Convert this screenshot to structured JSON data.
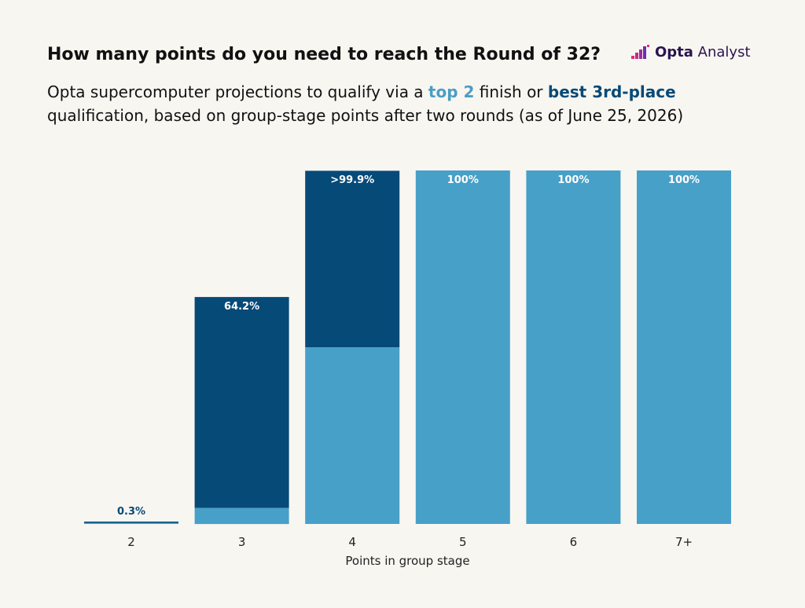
{
  "header": {
    "title": "How many points do you need to reach the Round of 32?",
    "subtitle_part1": "Opta supercomputer projections to qualify via a ",
    "subtitle_top2": "top 2",
    "subtitle_part2": " finish or ",
    "subtitle_best3": "best 3rd-place",
    "subtitle_part3": " qualification, based on group-stage points after two rounds (as of June 25, 2026)"
  },
  "logo": {
    "name_bold": "Opta",
    "name_light": " Analyst",
    "icon": "opta-bars-icon"
  },
  "colors": {
    "top2": "#47a0c8",
    "best3": "#064a78",
    "background": "#f8f6f1",
    "bar_label_light": "#ffffff",
    "bar_label_dark": "#064a78"
  },
  "chart_data": {
    "type": "bar",
    "stacked": true,
    "categories": [
      "2",
      "3",
      "4",
      "5",
      "6",
      "7+"
    ],
    "series": [
      {
        "name": "top 2",
        "values": [
          0.1,
          4.5,
          50,
          100,
          100,
          100
        ]
      },
      {
        "name": "best 3rd-place",
        "values": [
          0.2,
          59.7,
          49.9,
          0,
          0,
          0
        ]
      }
    ],
    "totals": [
      0.3,
      64.2,
      99.95,
      100,
      100,
      100
    ],
    "data_labels": [
      "0.3%",
      "64.2%",
      ">99.9%",
      "100%",
      "100%",
      "100%"
    ],
    "xlabel": "Points in group stage",
    "ylabel": "",
    "ylim": [
      0,
      100
    ],
    "grid": false,
    "legend": "in-subtitle"
  }
}
